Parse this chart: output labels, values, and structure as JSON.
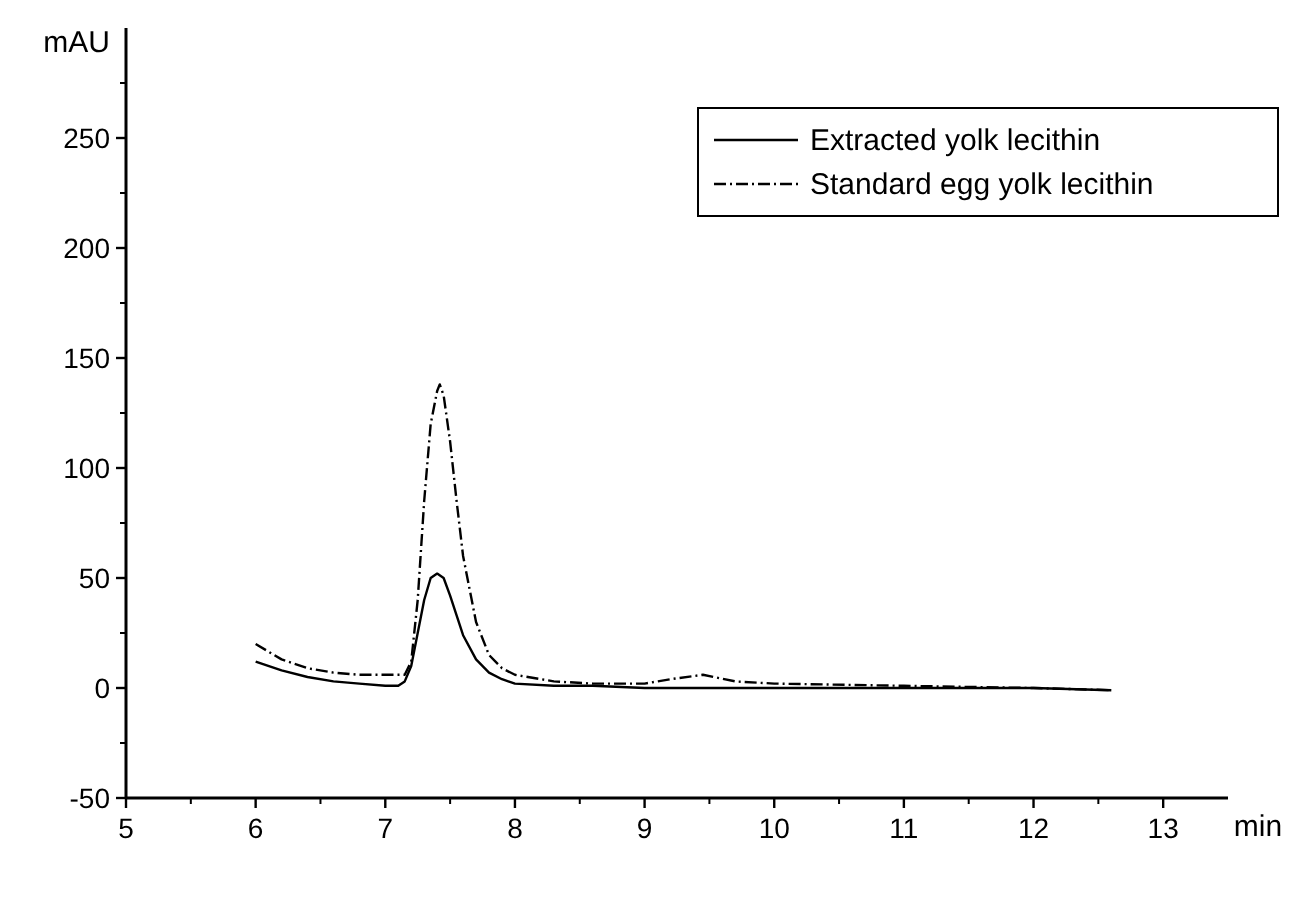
{
  "chart_data": {
    "type": "line",
    "xlabel": "min",
    "ylabel": "mAU",
    "xlim": [
      5,
      13.5
    ],
    "ylim": [
      -50,
      300
    ],
    "xticks": [
      5,
      6,
      7,
      8,
      9,
      10,
      11,
      12,
      13
    ],
    "yticks": [
      -50,
      0,
      50,
      100,
      150,
      200,
      250
    ],
    "legend": "top right",
    "grid": false,
    "series": [
      {
        "name": "Extracted yolk lecithin",
        "color": "#000000",
        "line_style": "solid",
        "x": [
          6,
          6.2,
          6.4,
          6.6,
          6.8,
          7,
          7.1,
          7.15,
          7.2,
          7.25,
          7.3,
          7.35,
          7.4,
          7.45,
          7.5,
          7.55,
          7.6,
          7.7,
          7.8,
          7.9,
          8,
          8.3,
          8.6,
          9,
          10,
          11,
          12,
          12.6
        ],
        "values": [
          12,
          8,
          5,
          3,
          2,
          1,
          1,
          3,
          10,
          25,
          40,
          50,
          52,
          50,
          42,
          33,
          24,
          13,
          7,
          4,
          2,
          1,
          1,
          0,
          0,
          0,
          0,
          -1
        ]
      },
      {
        "name": "Standard egg yolk lecithin",
        "color": "#000000",
        "line_style": "dashed",
        "x": [
          6,
          6.2,
          6.4,
          6.6,
          6.8,
          7,
          7.15,
          7.2,
          7.25,
          7.3,
          7.35,
          7.4,
          7.42,
          7.45,
          7.5,
          7.55,
          7.6,
          7.7,
          7.8,
          7.9,
          8,
          8.3,
          8.6,
          9,
          9.2,
          9.45,
          9.7,
          10,
          11,
          12,
          12.6
        ],
        "values": [
          20,
          13,
          9,
          7,
          6,
          6,
          6,
          12,
          40,
          85,
          120,
          135,
          138,
          133,
          112,
          85,
          60,
          30,
          15,
          9,
          6,
          3,
          2,
          2,
          4,
          6,
          3,
          2,
          1,
          0,
          -1
        ]
      }
    ]
  }
}
